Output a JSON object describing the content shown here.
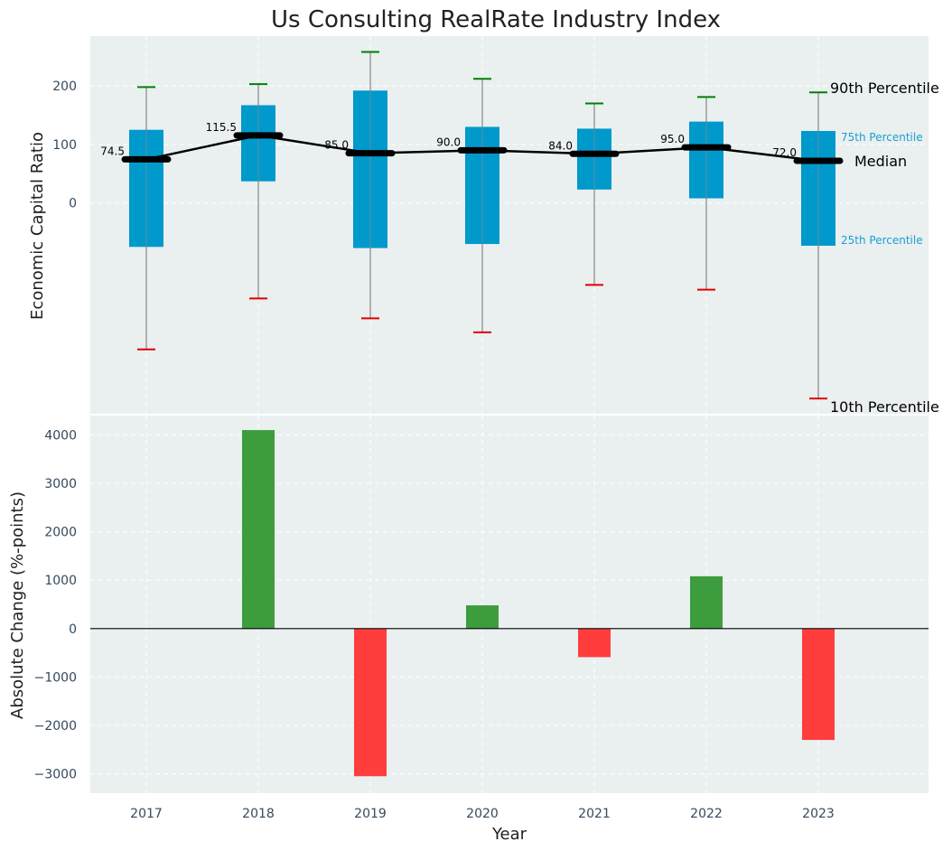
{
  "title": "Us Consulting RealRate Industry Index",
  "colors": {
    "panel_bg": "#eaeff0",
    "box": "#0099cc",
    "whisker": "#888888",
    "high_cap": "#008000",
    "low_cap": "#e00000",
    "median_line": "#000000",
    "positive_bar": "#3d9c3d",
    "negative_bar": "#ff3d3d",
    "annotation_blue": "#1a9fcf"
  },
  "chart_data": [
    {
      "type": "box",
      "ylabel": "Economic Capital Ratio",
      "yticks": [
        0,
        100,
        200
      ],
      "ylim": [
        -360,
        285
      ],
      "categories": [
        "2017",
        "2018",
        "2019",
        "2020",
        "2021",
        "2022",
        "2023"
      ],
      "p10": [
        -250,
        -163,
        -197,
        -221,
        -140,
        -148,
        -334
      ],
      "p25": [
        -75,
        37,
        -77,
        -70,
        23,
        8,
        -73
      ],
      "median": [
        74.5,
        115.5,
        85.0,
        90.0,
        84.0,
        95.0,
        72.0
      ],
      "median_labels": [
        "74.5",
        "115.5",
        "85.0",
        "90.0",
        "84.0",
        "95.0",
        "72.0"
      ],
      "p75": [
        125,
        167,
        192,
        130,
        127,
        139,
        123
      ],
      "p90": [
        198,
        203,
        258,
        212,
        170,
        181,
        189
      ],
      "annotations": {
        "p90": "90th Percentile",
        "p75": "75th Percentile",
        "median": "Median",
        "p25": "25th Percentile",
        "p10": "10th Percentile"
      },
      "grid": true
    },
    {
      "type": "bar",
      "xlabel": "Year",
      "ylabel": "Absolute Change (%-points)",
      "categories": [
        "2017",
        "2018",
        "2019",
        "2020",
        "2021",
        "2022",
        "2023"
      ],
      "values": [
        0,
        4100,
        -3050,
        480,
        -590,
        1080,
        -2300
      ],
      "yticks": [
        -3000,
        -2000,
        -1000,
        0,
        1000,
        2000,
        3000,
        4000
      ],
      "ytick_labels": [
        "−3000",
        "−2000",
        "−1000",
        "0",
        "1000",
        "2000",
        "3000",
        "4000"
      ],
      "ylim": [
        -3400,
        4400
      ],
      "grid": true
    }
  ]
}
